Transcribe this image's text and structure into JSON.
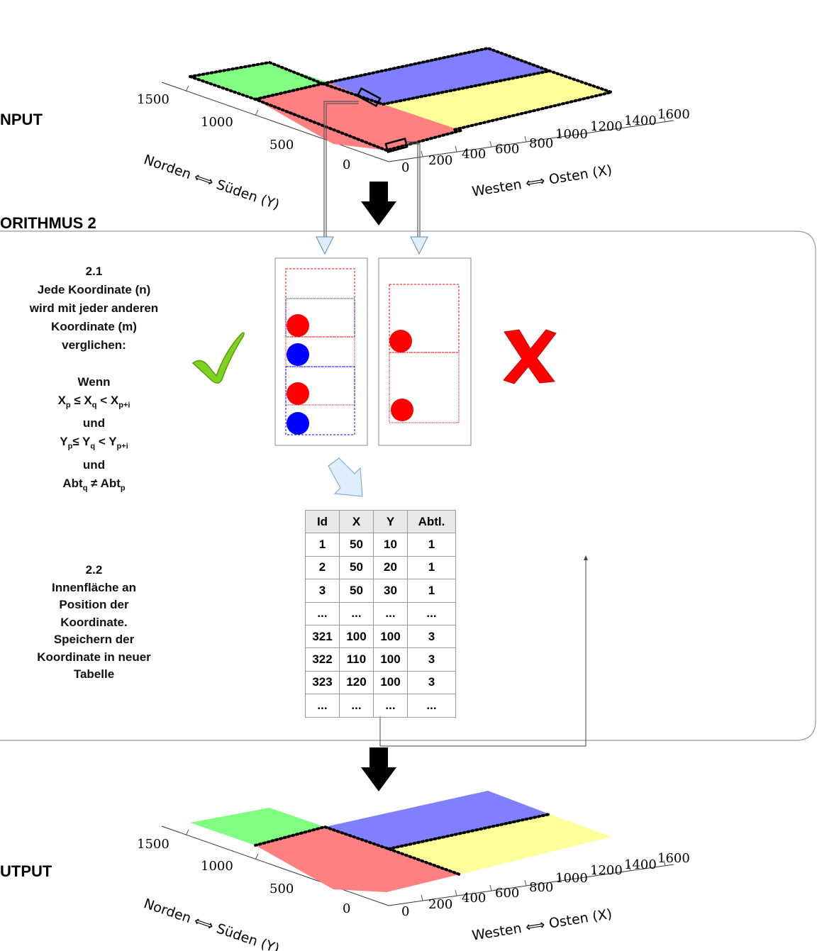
{
  "sections": {
    "input_label": "NPUT",
    "algorithm_label": "ORITHMUS 2",
    "output_label": "UTPUT"
  },
  "axes": {
    "y_label": "Norden ⟺ Süden (Y)",
    "x_label": "Westen ⟺ Osten (X)",
    "y_ticks": [
      "0",
      "500",
      "1000",
      "1500"
    ],
    "x_ticks": [
      "0",
      "200",
      "400",
      "600",
      "800",
      "1000",
      "1200",
      "1400",
      "1600"
    ]
  },
  "colors": {
    "green": "#80ff80",
    "red": "#ff8080",
    "blue": "#8080ff",
    "yellow": "#ffff99",
    "check_green": "#7ed321",
    "cross_red": "#ff0000"
  },
  "icons": {
    "check": "check-icon",
    "cross": "cross-icon",
    "arrow_down": "arrow-down-icon"
  },
  "step21": {
    "number": "2.1",
    "line1": "Jede Koordinate (n)",
    "line2": "wird mit jeder anderen",
    "line3": "Koordinate (m)",
    "line4": "verglichen:",
    "wenn": "Wenn",
    "c1_a": "X",
    "c1_a_sub": "p",
    "c1_op": " ≤ X",
    "c1_b_sub": "q",
    "c1_op2": " < X",
    "c1_c_sub": "p+i",
    "und1": "und",
    "c2_a": "Y",
    "c2_a_sub": "p",
    "c2_op": "≤ Y",
    "c2_b_sub": "q",
    "c2_op2": " < Y",
    "c2_c_sub": "p+i",
    "und2": "und",
    "c3_a": "Abt",
    "c3_a_sub": "q",
    "c3_op": " ≠ Abt",
    "c3_b_sub": "p"
  },
  "step22": {
    "number": "2.2",
    "line1": "Innenfläche an",
    "line2": "Position der",
    "line3": "Koordinate.",
    "line4": "Speichern der",
    "line5": "Koordinate in neuer",
    "line6": "Tabelle"
  },
  "table": {
    "headers": [
      "Id",
      "X",
      "Y",
      "Abtl."
    ],
    "rows": [
      [
        "1",
        "50",
        "10",
        "1"
      ],
      [
        "2",
        "50",
        "20",
        "1"
      ],
      [
        "3",
        "50",
        "30",
        "1"
      ],
      [
        "...",
        "...",
        "...",
        "..."
      ],
      [
        "321",
        "100",
        "100",
        "3"
      ],
      [
        "322",
        "110",
        "100",
        "3"
      ],
      [
        "323",
        "120",
        "100",
        "3"
      ],
      [
        "...",
        "...",
        "...",
        "..."
      ]
    ]
  }
}
